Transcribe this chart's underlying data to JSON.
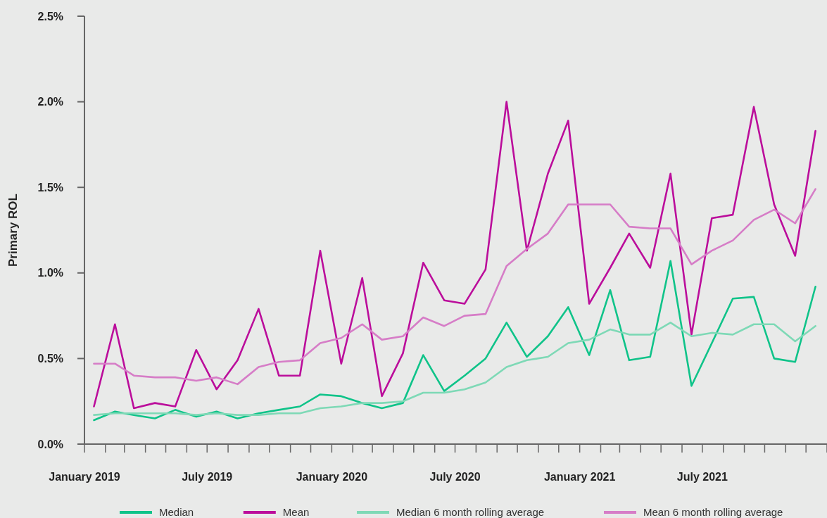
{
  "chart_data": {
    "type": "line",
    "ylabel": "Primary ROL",
    "legend": "bottom",
    "grid": false,
    "line_style": "solid",
    "marker": "none",
    "x": [
      "2019-01-15",
      "2019-02-15",
      "2019-03-15",
      "2019-04-15",
      "2019-05-15",
      "2019-06-15",
      "2019-07-15",
      "2019-08-15",
      "2019-09-15",
      "2019-10-15",
      "2019-11-15",
      "2019-12-15",
      "2020-01-15",
      "2020-02-15",
      "2020-03-15",
      "2020-04-15",
      "2020-05-15",
      "2020-06-15",
      "2020-07-15",
      "2020-08-15",
      "2020-09-15",
      "2020-10-15",
      "2020-11-15",
      "2020-12-15",
      "2021-01-15",
      "2021-02-15",
      "2021-03-15",
      "2021-04-15",
      "2021-05-15",
      "2021-06-15",
      "2021-07-15",
      "2021-08-15",
      "2021-09-15",
      "2021-10-15",
      "2021-11-15",
      "2021-12-15"
    ],
    "xlim": [
      "2019-01",
      "2022-01"
    ],
    "xticks": [
      {
        "value": "2019-01",
        "label": "January 2019"
      },
      {
        "value": "2019-02",
        "label": null
      },
      {
        "value": "2019-03",
        "label": null
      },
      {
        "value": "2019-04",
        "label": null
      },
      {
        "value": "2019-05",
        "label": null
      },
      {
        "value": "2019-06",
        "label": null
      },
      {
        "value": "2019-07",
        "label": "July 2019"
      },
      {
        "value": "2019-08",
        "label": null
      },
      {
        "value": "2019-09",
        "label": null
      },
      {
        "value": "2019-10",
        "label": null
      },
      {
        "value": "2019-11",
        "label": null
      },
      {
        "value": "2019-12",
        "label": null
      },
      {
        "value": "2020-01",
        "label": "January 2020"
      },
      {
        "value": "2020-02",
        "label": null
      },
      {
        "value": "2020-03",
        "label": null
      },
      {
        "value": "2020-04",
        "label": null
      },
      {
        "value": "2020-05",
        "label": null
      },
      {
        "value": "2020-06",
        "label": null
      },
      {
        "value": "2020-07",
        "label": "July 2020"
      },
      {
        "value": "2020-08",
        "label": null
      },
      {
        "value": "2020-09",
        "label": null
      },
      {
        "value": "2020-10",
        "label": null
      },
      {
        "value": "2020-11",
        "label": null
      },
      {
        "value": "2020-12",
        "label": null
      },
      {
        "value": "2021-01",
        "label": "January 2021"
      },
      {
        "value": "2021-02",
        "label": null
      },
      {
        "value": "2021-03",
        "label": null
      },
      {
        "value": "2021-04",
        "label": null
      },
      {
        "value": "2021-05",
        "label": null
      },
      {
        "value": "2021-06",
        "label": null
      },
      {
        "value": "2021-07",
        "label": "July 2021"
      },
      {
        "value": "2021-08",
        "label": null
      },
      {
        "value": "2021-09",
        "label": null
      },
      {
        "value": "2021-10",
        "label": null
      },
      {
        "value": "2021-11",
        "label": null
      },
      {
        "value": "2021-12",
        "label": null
      },
      {
        "value": "2022-01",
        "label": null
      }
    ],
    "ylim": [
      0,
      2.5
    ],
    "yticks": [
      {
        "value": 0,
        "label": "0.0%"
      },
      {
        "value": 0.5,
        "label": "0.5%"
      },
      {
        "value": 1,
        "label": "1.0%"
      },
      {
        "value": 1.5,
        "label": "1.5%"
      },
      {
        "value": 2,
        "label": "2.0%"
      },
      {
        "value": 2.5,
        "label": "2.5%"
      }
    ],
    "series": [
      {
        "name": "Median",
        "color": "#0fc389",
        "values": [
          0.14,
          0.19,
          0.17,
          0.15,
          0.2,
          0.16,
          0.19,
          0.15,
          0.18,
          0.2,
          0.22,
          0.29,
          0.28,
          0.24,
          0.21,
          0.24,
          0.52,
          0.31,
          0.4,
          0.5,
          0.71,
          0.51,
          0.63,
          0.8,
          0.52,
          0.9,
          0.49,
          0.51,
          1.07,
          0.34,
          0.59,
          0.85,
          0.86,
          0.5,
          0.48,
          0.92
        ]
      },
      {
        "name": "Mean",
        "color": "#bb0d9b",
        "values": [
          0.22,
          0.7,
          0.21,
          0.24,
          0.22,
          0.55,
          0.32,
          0.49,
          0.79,
          0.4,
          0.4,
          1.13,
          0.47,
          0.97,
          0.28,
          0.53,
          1.06,
          0.84,
          0.82,
          1.02,
          2.0,
          1.13,
          1.58,
          1.89,
          0.82,
          1.03,
          1.23,
          1.03,
          1.58,
          0.64,
          1.32,
          1.34,
          1.97,
          1.4,
          1.1,
          1.83
        ]
      },
      {
        "name": "Median 6 month rolling average",
        "color": "#7ed9b6",
        "values": [
          0.17,
          0.18,
          0.18,
          0.18,
          0.18,
          0.17,
          0.18,
          0.17,
          0.17,
          0.18,
          0.18,
          0.21,
          0.22,
          0.24,
          0.24,
          0.25,
          0.3,
          0.3,
          0.32,
          0.36,
          0.45,
          0.49,
          0.51,
          0.59,
          0.61,
          0.67,
          0.64,
          0.64,
          0.71,
          0.63,
          0.65,
          0.64,
          0.7,
          0.7,
          0.6,
          0.69
        ]
      },
      {
        "name": "Mean 6 month rolling average",
        "color": "#d67dc7",
        "values": [
          0.47,
          0.47,
          0.4,
          0.39,
          0.39,
          0.37,
          0.39,
          0.35,
          0.45,
          0.48,
          0.49,
          0.59,
          0.62,
          0.7,
          0.61,
          0.63,
          0.74,
          0.69,
          0.75,
          0.76,
          1.04,
          1.14,
          1.23,
          1.4,
          1.4,
          1.4,
          1.27,
          1.26,
          1.26,
          1.05,
          1.13,
          1.19,
          1.31,
          1.37,
          1.29,
          1.49
        ]
      }
    ]
  }
}
